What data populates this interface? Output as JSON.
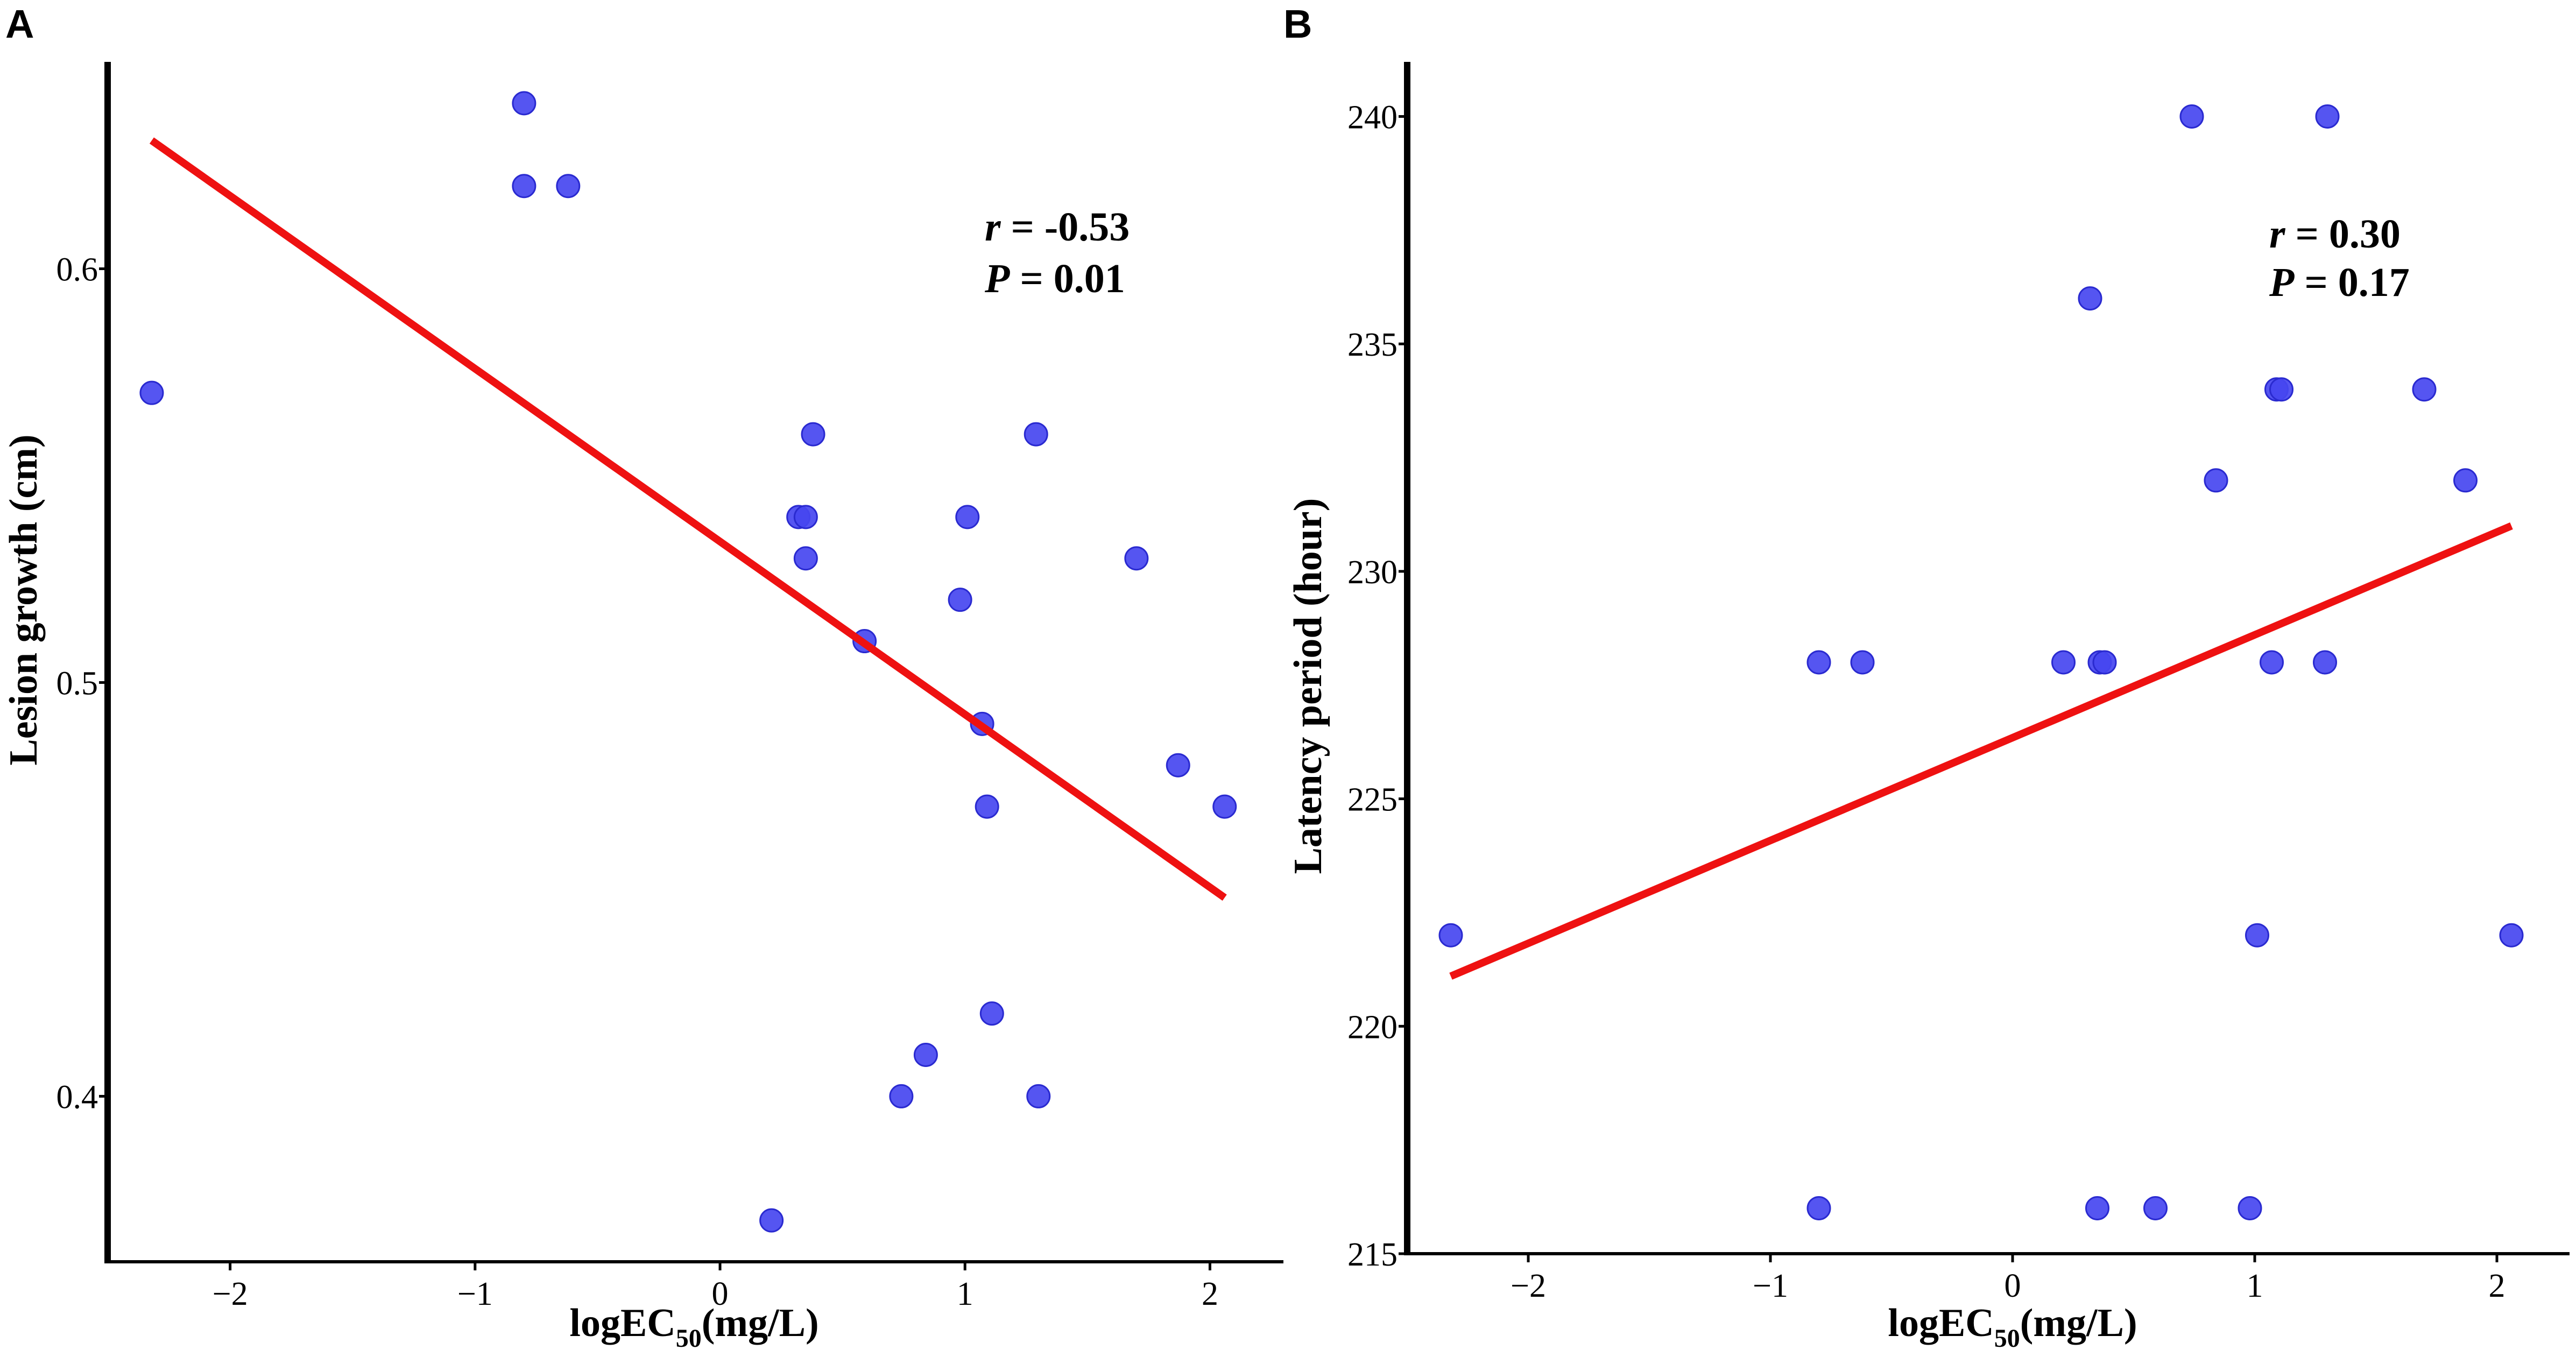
{
  "chart_data": [
    {
      "type": "scatter",
      "panel": "A",
      "title": "",
      "xlabel": "logEC50(mg/L)",
      "xlabel_main": "logEC",
      "xlabel_sub": "50",
      "xlabel_unit": "(mg/L)",
      "ylabel": "Lesion growth (cm)",
      "xlim": [
        -2.5,
        2.3
      ],
      "ylim": [
        0.36,
        0.65
      ],
      "xticks": [
        -2,
        -1,
        0,
        1,
        2
      ],
      "xtick_labels": [
        "−2",
        "−1",
        "0",
        "1",
        "2"
      ],
      "yticks": [
        0.4,
        0.5,
        0.6
      ],
      "ytick_labels": [
        "0.4",
        "0.5",
        "0.6"
      ],
      "points": [
        {
          "x": -2.32,
          "y": 0.57
        },
        {
          "x": -0.8,
          "y": 0.64
        },
        {
          "x": -0.8,
          "y": 0.62
        },
        {
          "x": -0.62,
          "y": 0.62
        },
        {
          "x": 0.21,
          "y": 0.37
        },
        {
          "x": 0.32,
          "y": 0.54
        },
        {
          "x": 0.35,
          "y": 0.54
        },
        {
          "x": 0.35,
          "y": 0.53
        },
        {
          "x": 0.38,
          "y": 0.56
        },
        {
          "x": 0.59,
          "y": 0.51
        },
        {
          "x": 0.74,
          "y": 0.4
        },
        {
          "x": 0.84,
          "y": 0.41
        },
        {
          "x": 0.98,
          "y": 0.52
        },
        {
          "x": 1.01,
          "y": 0.54
        },
        {
          "x": 1.07,
          "y": 0.49
        },
        {
          "x": 1.09,
          "y": 0.47
        },
        {
          "x": 1.11,
          "y": 0.42
        },
        {
          "x": 1.29,
          "y": 0.56
        },
        {
          "x": 1.3,
          "y": 0.4
        },
        {
          "x": 1.7,
          "y": 0.53
        },
        {
          "x": 1.87,
          "y": 0.48
        },
        {
          "x": 2.06,
          "y": 0.47
        }
      ],
      "fit_line": {
        "x": [
          -2.32,
          2.06
        ],
        "y": [
          0.631,
          0.448
        ]
      },
      "stats": {
        "r_label": "r",
        "r_value": " = -0.53",
        "p_label": "P",
        "p_value": " = 0.01"
      },
      "colors": {
        "point": "#4646f0",
        "point_edge": "#2a2ad0",
        "fit": "#ee1111",
        "axis": "#000000"
      }
    },
    {
      "type": "scatter",
      "panel": "B",
      "title": "",
      "xlabel": "logEC50(mg/L)",
      "xlabel_main": "logEC",
      "xlabel_sub": "50",
      "xlabel_unit": "(mg/L)",
      "ylabel": "Latency period (hour)",
      "xlim": [
        -2.5,
        2.3
      ],
      "ylim": [
        215,
        241.2
      ],
      "xticks": [
        -2,
        -1,
        0,
        1,
        2
      ],
      "xtick_labels": [
        "−2",
        "−1",
        "0",
        "1",
        "2"
      ],
      "yticks": [
        215,
        220,
        225,
        230,
        235,
        240
      ],
      "ytick_labels": [
        "215",
        "220",
        "225",
        "230",
        "235",
        "240"
      ],
      "points": [
        {
          "x": -2.32,
          "y": 222
        },
        {
          "x": -0.8,
          "y": 228
        },
        {
          "x": -0.8,
          "y": 216
        },
        {
          "x": -0.62,
          "y": 228
        },
        {
          "x": 0.21,
          "y": 228
        },
        {
          "x": 0.32,
          "y": 236
        },
        {
          "x": 0.35,
          "y": 216
        },
        {
          "x": 0.36,
          "y": 228
        },
        {
          "x": 0.38,
          "y": 228
        },
        {
          "x": 0.59,
          "y": 216
        },
        {
          "x": 0.74,
          "y": 240
        },
        {
          "x": 0.84,
          "y": 232
        },
        {
          "x": 0.98,
          "y": 216
        },
        {
          "x": 1.01,
          "y": 222
        },
        {
          "x": 1.07,
          "y": 228
        },
        {
          "x": 1.09,
          "y": 234
        },
        {
          "x": 1.11,
          "y": 234
        },
        {
          "x": 1.29,
          "y": 228
        },
        {
          "x": 1.3,
          "y": 240
        },
        {
          "x": 1.7,
          "y": 234
        },
        {
          "x": 1.87,
          "y": 232
        },
        {
          "x": 2.06,
          "y": 222
        }
      ],
      "fit_line": {
        "x": [
          -2.32,
          2.06
        ],
        "y": [
          221.1,
          231.0
        ]
      },
      "stats": {
        "r_label": "r",
        "r_value": " = 0.30",
        "p_label": "P",
        "p_value": " = 0.17"
      },
      "colors": {
        "point": "#4646f0",
        "point_edge": "#2a2ad0",
        "fit": "#ee1111",
        "axis": "#000000"
      }
    }
  ]
}
